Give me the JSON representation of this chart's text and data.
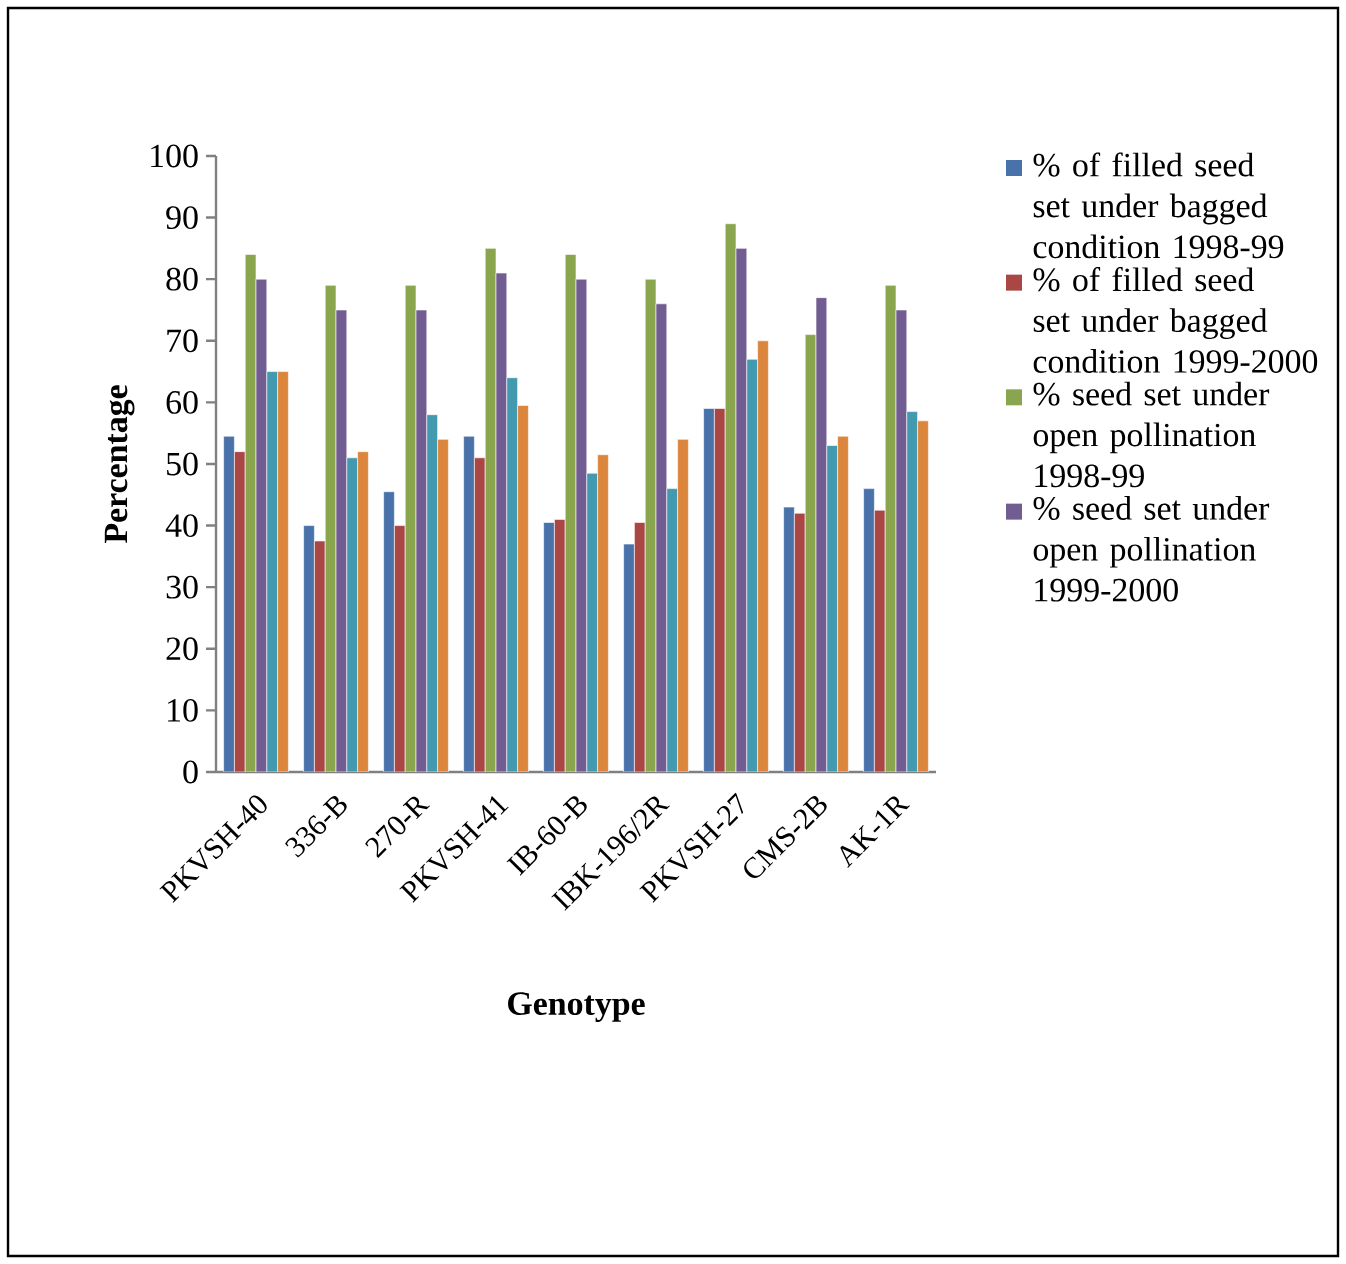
{
  "chart_data": {
    "type": "bar",
    "xlabel": "Genotype",
    "ylabel": "Percentage",
    "categories": [
      "PKVSH-40",
      "336-B",
      "270-R",
      "PKVSH-41",
      "IB-60-B",
      "IBK-196/2R",
      "PKVSH-27",
      "CMS-2B",
      "AK-1R"
    ],
    "series": [
      {
        "name": "% of filled seed set under bagged condition 1998-99",
        "color": "#4a72aa",
        "values": [
          54.5,
          40,
          45.5,
          54.5,
          40.5,
          37,
          59,
          43,
          46
        ]
      },
      {
        "name": "% of filled seed set under bagged condition 1999-2000",
        "color": "#aa4644",
        "values": [
          52,
          37.5,
          40,
          51,
          41,
          40.5,
          59,
          42,
          42.5
        ]
      },
      {
        "name": "% seed set under open pollination 1998-99",
        "color": "#89a54e",
        "values": [
          84,
          79,
          79,
          85,
          84,
          80,
          89,
          71,
          79
        ]
      },
      {
        "name": "% seed set under open pollination 1999-2000",
        "color": "#725d92",
        "values": [
          80,
          75,
          75,
          81,
          80,
          76,
          85,
          77,
          75
        ]
      },
      {
        "color": "#4299b0",
        "values": [
          65,
          51,
          58,
          64,
          48.5,
          46,
          67,
          53,
          58.5
        ]
      },
      {
        "color": "#db853d",
        "values": [
          65,
          52,
          54,
          59.5,
          51.5,
          54,
          70,
          54.5,
          57
        ]
      }
    ],
    "ylim": [
      0,
      100
    ],
    "yticks": [
      0,
      10,
      20,
      30,
      40,
      50,
      60,
      70,
      80,
      90,
      100
    ],
    "legend": "right"
  }
}
